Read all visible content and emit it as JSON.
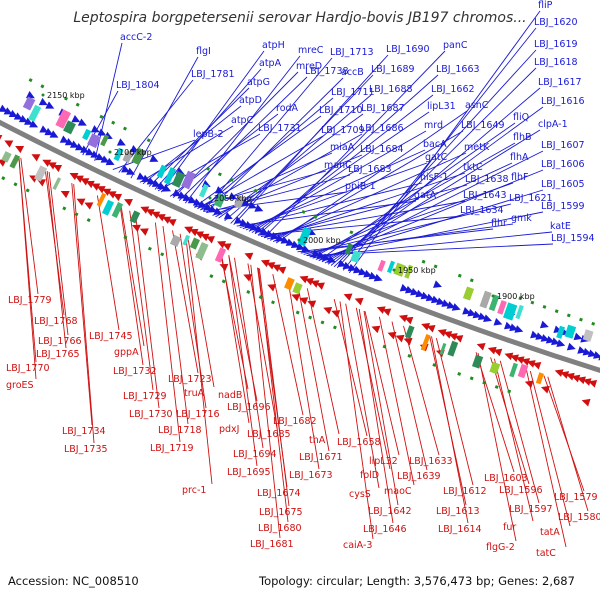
{
  "title": "Leptospira borgpetersenii serovar Hardjo-bovis JB197 chromos...",
  "footer": {
    "accession_label": "Accession:",
    "accession": "NC_008510",
    "topology_label": "Topology:",
    "topology": "circular",
    "length_label": "Length:",
    "length": "3,576,473 bp",
    "genes_label": "Genes:",
    "genes": "2,687"
  },
  "colors": {
    "forward": "#1a1ad6",
    "reverse": "#d01010",
    "backbone": "#808080",
    "tick": "#228b22"
  },
  "scale_labels": [
    "2150 kbp",
    "2100 kbp",
    "2050 kbp",
    "2000 kbp",
    "1950 kbp",
    "1900 kbp"
  ],
  "forward_labels": [
    "accC-2",
    "flgI",
    "atpH",
    "mreC",
    "LBJ_1713",
    "LBJ_1690",
    "panC",
    "fliP",
    "LBJ_1620",
    "LBJ_1804",
    "LBJ_1781",
    "atpA",
    "mreD",
    "LBJ_1738",
    "accB",
    "LBJ_1689",
    "LBJ_1663",
    "LBJ_1619",
    "atpG",
    "LBJ_1711",
    "LBJ_1688",
    "LBJ_1618",
    "atpD",
    "rodA",
    "LBJ_1710",
    "LBJ_1687",
    "lipL31",
    "LBJ_1662",
    "LBJ_1617",
    "fliQ",
    "asnC",
    "LBJ_1616",
    "atpC",
    "LBJ_1731",
    "LBJ_1709",
    "LBJ_1686",
    "mrd",
    "LBJ_1649",
    "clpA-1",
    "flhB",
    "lepB-2",
    "miaA",
    "bacA",
    "metK",
    "LBJ_1607",
    "LBJ_1684",
    "gatC",
    "flhA",
    "LBJ_1606",
    "manC",
    "hisF-1",
    "tktC",
    "LBJ_1683",
    "LBJ_1638",
    "flhF",
    "LBJ_1605",
    "ppiB-1",
    "LBJ_1643",
    "LBJ_1621",
    "LBJ_1599",
    "gatA",
    "LBJ_1634",
    "flhr",
    "gmk",
    "katE",
    "LBJ_1594"
  ],
  "reverse_labels": [
    "LBJ_1779",
    "LBJ_1768",
    "LBJ_1745",
    "LBJ_1766",
    "LBJ_1765",
    "gppA",
    "LBJ_1770",
    "groES",
    "LBJ_1732",
    "LBJ_1723",
    "truA",
    "nadB",
    "LBJ_1729",
    "LBJ_1730",
    "LBJ_1716",
    "LBJ_1696",
    "pdxJ",
    "LBJ_1734",
    "LBJ_1718",
    "LBJ_1682",
    "LBJ_1685",
    "thA",
    "LBJ_1735",
    "LBJ_1719",
    "LBJ_1694",
    "LBJ_1658",
    "LBJ_1671",
    "lipL32",
    "LBJ_1633",
    "LBJ_1695",
    "LBJ_1673",
    "folD",
    "LBJ_1639",
    "LBJ_1603",
    "prc-1",
    "LBJ_1674",
    "cysS",
    "maoC",
    "LBJ_1612",
    "LBJ_1596",
    "LBJ_1579",
    "LBJ_1675",
    "LBJ_1642",
    "LBJ_1613",
    "LBJ_1597",
    "LBJ_1580",
    "LBJ_1680",
    "LBJ_1646",
    "LBJ_1614",
    "fur",
    "tatA",
    "LBJ_1681",
    "caiA-3",
    "flgG-2",
    "tatC"
  ]
}
